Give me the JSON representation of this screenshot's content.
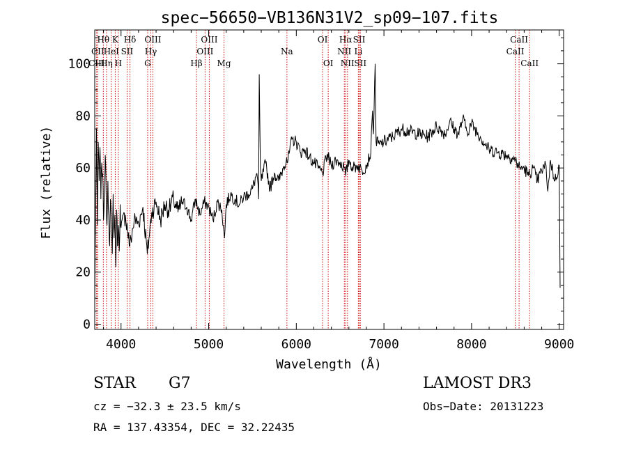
{
  "chart_data": {
    "type": "line",
    "title": "spec−56650−VB136N31V2_sp09−107.fits",
    "xlabel": "Wavelength (Å)",
    "ylabel": "Flux (relative)",
    "xlim": [
      3700,
      9050
    ],
    "ylim": [
      -2,
      113
    ],
    "xticks": [
      4000,
      5000,
      6000,
      7000,
      8000,
      9000
    ],
    "yticks": [
      0,
      20,
      40,
      60,
      80,
      100
    ],
    "grid": false,
    "series": [
      {
        "name": "spectrum",
        "x": [
          3700,
          3710,
          3720,
          3730,
          3740,
          3750,
          3760,
          3770,
          3780,
          3790,
          3800,
          3810,
          3820,
          3830,
          3840,
          3850,
          3860,
          3870,
          3880,
          3890,
          3900,
          3910,
          3920,
          3930,
          3940,
          3950,
          3960,
          3970,
          3980,
          3990,
          4000,
          4050,
          4100,
          4150,
          4200,
          4250,
          4300,
          4350,
          4400,
          4450,
          4500,
          4550,
          4600,
          4650,
          4700,
          4750,
          4800,
          4850,
          4900,
          4950,
          5000,
          5050,
          5100,
          5150,
          5180,
          5200,
          5250,
          5300,
          5350,
          5400,
          5450,
          5500,
          5550,
          5570,
          5577,
          5590,
          5600,
          5650,
          5700,
          5750,
          5800,
          5850,
          5890,
          5900,
          5950,
          6000,
          6050,
          6100,
          6150,
          6200,
          6250,
          6300,
          6350,
          6400,
          6450,
          6500,
          6550,
          6563,
          6600,
          6650,
          6700,
          6750,
          6800,
          6850,
          6870,
          6880,
          6900,
          6910,
          6950,
          7000,
          7100,
          7200,
          7300,
          7400,
          7500,
          7600,
          7700,
          7750,
          7800,
          7850,
          7900,
          7950,
          8000,
          8100,
          8200,
          8300,
          8400,
          8500,
          8550,
          8600,
          8650,
          8700,
          8750,
          8800,
          8850,
          8870,
          8900,
          8950,
          9000,
          9010
        ],
        "y": [
          8,
          45,
          75,
          38,
          70,
          55,
          68,
          48,
          62,
          58,
          40,
          52,
          65,
          50,
          38,
          55,
          42,
          30,
          48,
          35,
          27,
          50,
          33,
          42,
          22,
          44,
          30,
          38,
          28,
          46,
          37,
          42,
          30,
          40,
          39,
          45,
          27,
          43,
          47,
          40,
          46,
          44,
          48,
          43,
          47,
          45,
          40,
          48,
          42,
          47,
          45,
          40,
          47,
          44,
          33,
          46,
          50,
          48,
          46,
          49,
          50,
          52,
          58,
          48,
          96,
          60,
          55,
          62,
          52,
          58,
          55,
          60,
          64,
          62,
          71,
          70,
          66,
          67,
          64,
          62,
          60,
          58,
          65,
          61,
          63,
          62,
          60,
          57,
          63,
          60,
          61,
          59,
          61,
          66,
          82,
          73,
          100,
          70,
          69,
          70,
          72,
          75,
          74,
          73,
          72,
          76,
          73,
          78,
          75,
          73,
          79,
          74,
          77,
          72,
          67,
          66,
          65,
          63,
          60,
          60,
          57,
          60,
          55,
          59,
          61,
          51,
          63,
          55,
          61,
          14
        ],
        "color": "#000000"
      }
    ],
    "annotations": {
      "line_color": "#cc0000",
      "lines": [
        {
          "label": "Hθ",
          "wavelength": 3798,
          "row": 1
        },
        {
          "label": "CII",
          "wavelength": 3734,
          "row": 2
        },
        {
          "label": "CIII",
          "wavelength": 3722,
          "row": 3
        },
        {
          "label": "K",
          "wavelength": 3934,
          "row": 1
        },
        {
          "label": "HeI",
          "wavelength": 3889,
          "row": 2
        },
        {
          "label": "Hη",
          "wavelength": 3835,
          "row": 3
        },
        {
          "label": "SII",
          "wavelength": 4069,
          "row": 2
        },
        {
          "label": "H",
          "wavelength": 3969,
          "row": 3
        },
        {
          "label": "Hδ",
          "wavelength": 4102,
          "row": 1
        },
        {
          "label": "OIII",
          "wavelength": 4363,
          "row": 1
        },
        {
          "label": "Hγ",
          "wavelength": 4340,
          "row": 2
        },
        {
          "label": "G",
          "wavelength": 4304,
          "row": 3
        },
        {
          "label": "Hβ",
          "wavelength": 4861,
          "row": 3
        },
        {
          "label": "OIII",
          "wavelength": 5007,
          "row": 1
        },
        {
          "label": "OIII",
          "wavelength": 4959,
          "row": 2
        },
        {
          "label": "Mg",
          "wavelength": 5175,
          "row": 3
        },
        {
          "label": "Na",
          "wavelength": 5893,
          "row": 2
        },
        {
          "label": "OI",
          "wavelength": 6300,
          "row": 1
        },
        {
          "label": "OI",
          "wavelength": 6364,
          "row": 3
        },
        {
          "label": "Hα",
          "wavelength": 6563,
          "row": 1
        },
        {
          "label": "NII",
          "wavelength": 6548,
          "row": 2
        },
        {
          "label": "NII",
          "wavelength": 6584,
          "row": 3
        },
        {
          "label": "SII",
          "wavelength": 6717,
          "row": 1
        },
        {
          "label": "Li",
          "wavelength": 6708,
          "row": 2
        },
        {
          "label": "SII",
          "wavelength": 6731,
          "row": 3
        },
        {
          "label": "CaII",
          "wavelength": 8542,
          "row": 1
        },
        {
          "label": "CaII",
          "wavelength": 8498,
          "row": 2
        },
        {
          "label": "CaII",
          "wavelength": 8662,
          "row": 3
        }
      ]
    }
  },
  "info": {
    "class": "STAR",
    "subclass": "G7",
    "survey": "LAMOST DR3",
    "redshift": "cz = −32.3 ± 23.5 km/s",
    "obs_date": "Obs−Date: 20131223",
    "coords": "RA = 137.43354, DEC =  32.22435"
  }
}
